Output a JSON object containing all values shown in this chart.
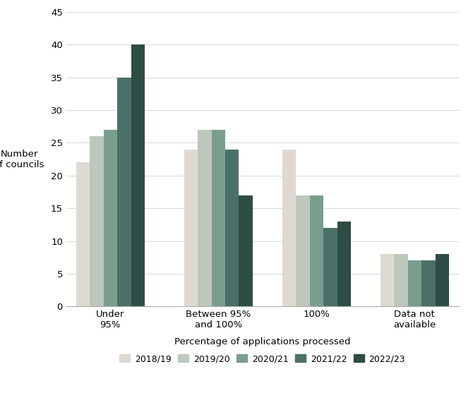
{
  "categories": [
    "Under\n95%",
    "Between 95%\nand 100%",
    "100%",
    "Data not\navailable"
  ],
  "series": {
    "2018/19": [
      22,
      24,
      24,
      8
    ],
    "2019/20": [
      26,
      27,
      17,
      8
    ],
    "2020/21": [
      27,
      27,
      17,
      7
    ],
    "2021/22": [
      35,
      24,
      12,
      7
    ],
    "2022/23": [
      40,
      17,
      13,
      8
    ]
  },
  "colors": {
    "2018/19": "#dedad2",
    "2019/20": "#bcc8bb",
    "2020/21": "#7a9e8e",
    "2021/22": "#4a7068",
    "2022/23": "#2d4d45"
  },
  "ylabel": "Number\nof councils",
  "xlabel": "Percentage of applications processed",
  "ylim": [
    0,
    45
  ],
  "yticks": [
    0,
    5,
    10,
    15,
    20,
    25,
    30,
    35,
    40,
    45
  ],
  "bar_width": 0.14,
  "legend_order": [
    "2018/19",
    "2019/20",
    "2020/21",
    "2021/22",
    "2022/23"
  ],
  "background_color": "#ffffff",
  "grid_color": "#d0d0d0"
}
